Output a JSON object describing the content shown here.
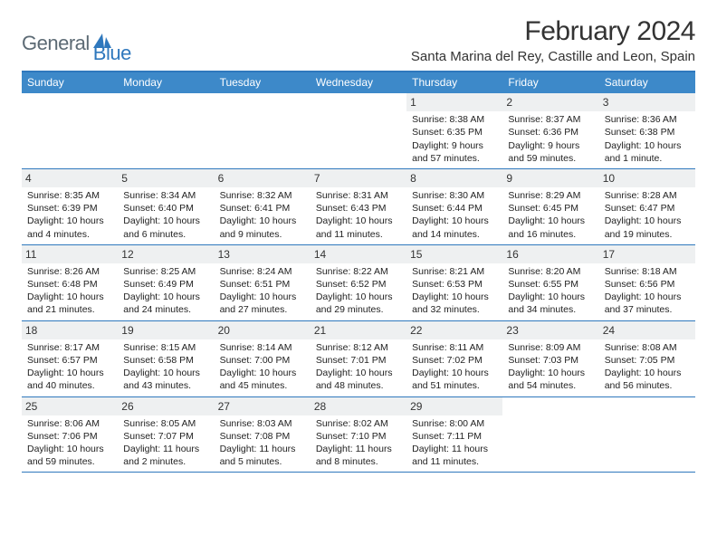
{
  "logo": {
    "part1": "General",
    "part2": "Blue"
  },
  "title": "February 2024",
  "location": "Santa Marina del Rey, Castille and Leon, Spain",
  "colors": {
    "header_bg": "#3d89c9",
    "border": "#2f78bd",
    "daynum_bg": "#eef0f1",
    "text": "#222222",
    "logo_gray": "#5c6a74",
    "logo_blue": "#2f78bd"
  },
  "weekdays": [
    "Sunday",
    "Monday",
    "Tuesday",
    "Wednesday",
    "Thursday",
    "Friday",
    "Saturday"
  ],
  "weeks": [
    [
      {
        "blank": true
      },
      {
        "blank": true
      },
      {
        "blank": true
      },
      {
        "blank": true
      },
      {
        "n": "1",
        "sr": "Sunrise: 8:38 AM",
        "ss": "Sunset: 6:35 PM",
        "dl": "Daylight: 9 hours and 57 minutes."
      },
      {
        "n": "2",
        "sr": "Sunrise: 8:37 AM",
        "ss": "Sunset: 6:36 PM",
        "dl": "Daylight: 9 hours and 59 minutes."
      },
      {
        "n": "3",
        "sr": "Sunrise: 8:36 AM",
        "ss": "Sunset: 6:38 PM",
        "dl": "Daylight: 10 hours and 1 minute."
      }
    ],
    [
      {
        "n": "4",
        "sr": "Sunrise: 8:35 AM",
        "ss": "Sunset: 6:39 PM",
        "dl": "Daylight: 10 hours and 4 minutes."
      },
      {
        "n": "5",
        "sr": "Sunrise: 8:34 AM",
        "ss": "Sunset: 6:40 PM",
        "dl": "Daylight: 10 hours and 6 minutes."
      },
      {
        "n": "6",
        "sr": "Sunrise: 8:32 AM",
        "ss": "Sunset: 6:41 PM",
        "dl": "Daylight: 10 hours and 9 minutes."
      },
      {
        "n": "7",
        "sr": "Sunrise: 8:31 AM",
        "ss": "Sunset: 6:43 PM",
        "dl": "Daylight: 10 hours and 11 minutes."
      },
      {
        "n": "8",
        "sr": "Sunrise: 8:30 AM",
        "ss": "Sunset: 6:44 PM",
        "dl": "Daylight: 10 hours and 14 minutes."
      },
      {
        "n": "9",
        "sr": "Sunrise: 8:29 AM",
        "ss": "Sunset: 6:45 PM",
        "dl": "Daylight: 10 hours and 16 minutes."
      },
      {
        "n": "10",
        "sr": "Sunrise: 8:28 AM",
        "ss": "Sunset: 6:47 PM",
        "dl": "Daylight: 10 hours and 19 minutes."
      }
    ],
    [
      {
        "n": "11",
        "sr": "Sunrise: 8:26 AM",
        "ss": "Sunset: 6:48 PM",
        "dl": "Daylight: 10 hours and 21 minutes."
      },
      {
        "n": "12",
        "sr": "Sunrise: 8:25 AM",
        "ss": "Sunset: 6:49 PM",
        "dl": "Daylight: 10 hours and 24 minutes."
      },
      {
        "n": "13",
        "sr": "Sunrise: 8:24 AM",
        "ss": "Sunset: 6:51 PM",
        "dl": "Daylight: 10 hours and 27 minutes."
      },
      {
        "n": "14",
        "sr": "Sunrise: 8:22 AM",
        "ss": "Sunset: 6:52 PM",
        "dl": "Daylight: 10 hours and 29 minutes."
      },
      {
        "n": "15",
        "sr": "Sunrise: 8:21 AM",
        "ss": "Sunset: 6:53 PM",
        "dl": "Daylight: 10 hours and 32 minutes."
      },
      {
        "n": "16",
        "sr": "Sunrise: 8:20 AM",
        "ss": "Sunset: 6:55 PM",
        "dl": "Daylight: 10 hours and 34 minutes."
      },
      {
        "n": "17",
        "sr": "Sunrise: 8:18 AM",
        "ss": "Sunset: 6:56 PM",
        "dl": "Daylight: 10 hours and 37 minutes."
      }
    ],
    [
      {
        "n": "18",
        "sr": "Sunrise: 8:17 AM",
        "ss": "Sunset: 6:57 PM",
        "dl": "Daylight: 10 hours and 40 minutes."
      },
      {
        "n": "19",
        "sr": "Sunrise: 8:15 AM",
        "ss": "Sunset: 6:58 PM",
        "dl": "Daylight: 10 hours and 43 minutes."
      },
      {
        "n": "20",
        "sr": "Sunrise: 8:14 AM",
        "ss": "Sunset: 7:00 PM",
        "dl": "Daylight: 10 hours and 45 minutes."
      },
      {
        "n": "21",
        "sr": "Sunrise: 8:12 AM",
        "ss": "Sunset: 7:01 PM",
        "dl": "Daylight: 10 hours and 48 minutes."
      },
      {
        "n": "22",
        "sr": "Sunrise: 8:11 AM",
        "ss": "Sunset: 7:02 PM",
        "dl": "Daylight: 10 hours and 51 minutes."
      },
      {
        "n": "23",
        "sr": "Sunrise: 8:09 AM",
        "ss": "Sunset: 7:03 PM",
        "dl": "Daylight: 10 hours and 54 minutes."
      },
      {
        "n": "24",
        "sr": "Sunrise: 8:08 AM",
        "ss": "Sunset: 7:05 PM",
        "dl": "Daylight: 10 hours and 56 minutes."
      }
    ],
    [
      {
        "n": "25",
        "sr": "Sunrise: 8:06 AM",
        "ss": "Sunset: 7:06 PM",
        "dl": "Daylight: 10 hours and 59 minutes."
      },
      {
        "n": "26",
        "sr": "Sunrise: 8:05 AM",
        "ss": "Sunset: 7:07 PM",
        "dl": "Daylight: 11 hours and 2 minutes."
      },
      {
        "n": "27",
        "sr": "Sunrise: 8:03 AM",
        "ss": "Sunset: 7:08 PM",
        "dl": "Daylight: 11 hours and 5 minutes."
      },
      {
        "n": "28",
        "sr": "Sunrise: 8:02 AM",
        "ss": "Sunset: 7:10 PM",
        "dl": "Daylight: 11 hours and 8 minutes."
      },
      {
        "n": "29",
        "sr": "Sunrise: 8:00 AM",
        "ss": "Sunset: 7:11 PM",
        "dl": "Daylight: 11 hours and 11 minutes."
      },
      {
        "blank": true
      },
      {
        "blank": true
      }
    ]
  ]
}
